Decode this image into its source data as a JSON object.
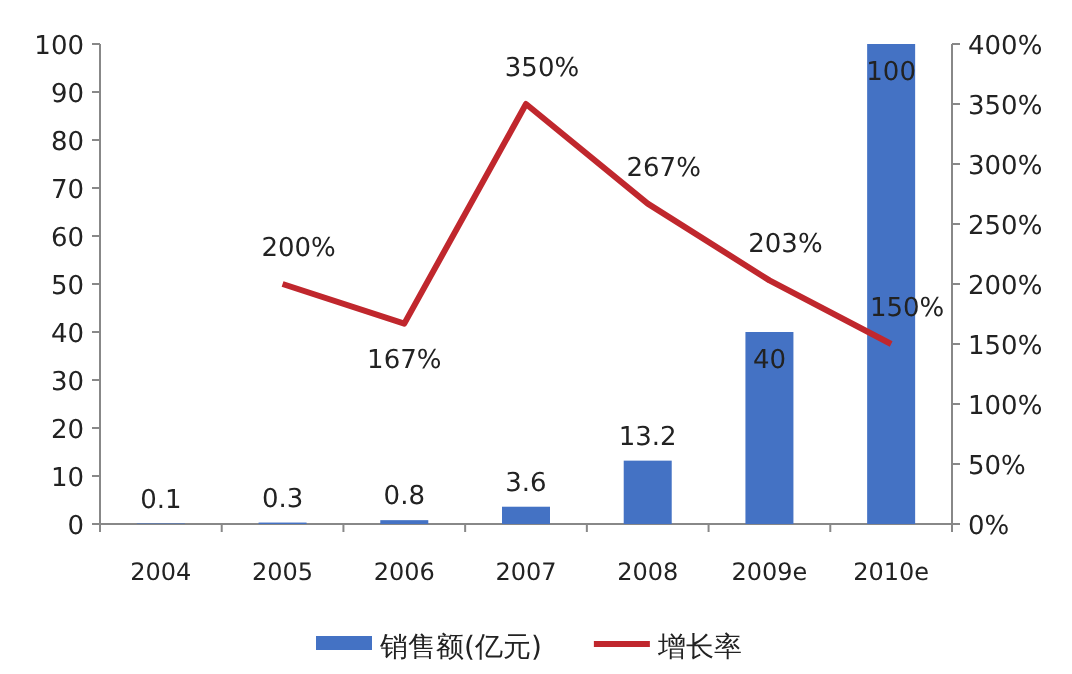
{
  "chart_data": {
    "type": "bar",
    "categories": [
      "2004",
      "2005",
      "2006",
      "2007",
      "2008",
      "2009e",
      "2010e"
    ],
    "series": [
      {
        "name": "销售额(亿元)",
        "color": "#4472c4",
        "values": [
          0.1,
          0.3,
          0.8,
          3.6,
          13.2,
          40,
          100
        ]
      },
      {
        "name": "增长率",
        "type": "line",
        "axis": "y2",
        "color": "#c0272d",
        "values": [
          null,
          200,
          167,
          350,
          267,
          203,
          150
        ],
        "value_labels": [
          null,
          "200%",
          "167%",
          "350%",
          "267%",
          "203%",
          "150%"
        ]
      }
    ],
    "ylim": [
      0,
      100
    ],
    "yticks": [
      0,
      10,
      20,
      30,
      40,
      50,
      60,
      70,
      80,
      90,
      100
    ],
    "y2lim": [
      0,
      400
    ],
    "y2ticks": [
      {
        "value": 0,
        "label": "0%"
      },
      {
        "value": 50,
        "label": "50%"
      },
      {
        "value": 100,
        "label": "100%"
      },
      {
        "value": 150,
        "label": "150%"
      },
      {
        "value": 200,
        "label": "200%"
      },
      {
        "value": 250,
        "label": "250%"
      },
      {
        "value": 300,
        "label": "300%"
      },
      {
        "value": 350,
        "label": "350%"
      },
      {
        "value": 400,
        "label": "400%"
      }
    ],
    "data_labels": true,
    "legend": "bottom"
  }
}
